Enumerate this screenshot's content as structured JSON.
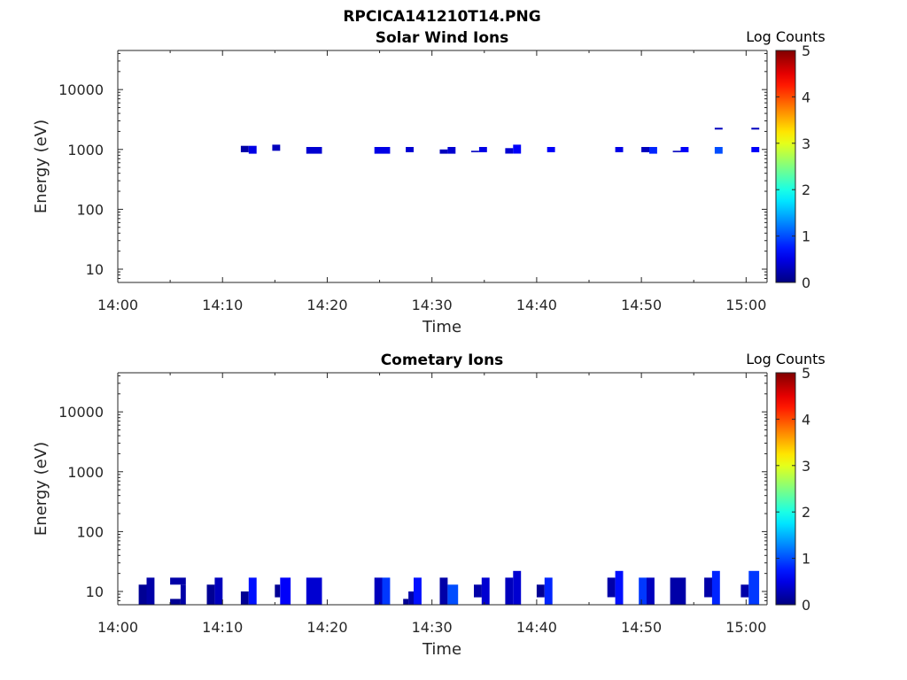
{
  "figure": {
    "title": "RPCICA141210T14.PNG"
  },
  "chart_data": [
    {
      "type": "heatmap",
      "title": "Solar Wind Ions",
      "xlabel": "Time",
      "ylabel": "Energy (eV)",
      "x_scale": "time",
      "y_scale": "log",
      "x_ticks": [
        "14:00",
        "14:10",
        "14:20",
        "14:30",
        "14:40",
        "14:50",
        "15:00"
      ],
      "y_ticks": [
        "10",
        "100",
        "1000",
        "10000"
      ],
      "xlim": [
        "14:00",
        "15:02"
      ],
      "ylim": [
        6,
        45000
      ],
      "colorbar": {
        "label": "Log Counts",
        "ticks": [
          "0",
          "1",
          "2",
          "3",
          "4",
          "5"
        ],
        "range": [
          0,
          5
        ],
        "colormap": "jet"
      },
      "cells": [
        {
          "t0": "14:11:45",
          "t1": "14:12:30",
          "e0": 900,
          "e1": 1150,
          "v": 0.2
        },
        {
          "t0": "14:12:30",
          "t1": "14:13:15",
          "e0": 850,
          "e1": 1150,
          "v": 0.5
        },
        {
          "t0": "14:14:45",
          "t1": "14:15:30",
          "e0": 950,
          "e1": 1200,
          "v": 0.3
        },
        {
          "t0": "14:18:00",
          "t1": "14:19:30",
          "e0": 850,
          "e1": 1100,
          "v": 0.4
        },
        {
          "t0": "14:24:30",
          "t1": "14:26:00",
          "e0": 850,
          "e1": 1100,
          "v": 0.5
        },
        {
          "t0": "14:27:30",
          "t1": "14:28:15",
          "e0": 900,
          "e1": 1100,
          "v": 0.4
        },
        {
          "t0": "14:30:45",
          "t1": "14:31:30",
          "e0": 850,
          "e1": 1000,
          "v": 0.3
        },
        {
          "t0": "14:31:30",
          "t1": "14:32:15",
          "e0": 850,
          "e1": 1100,
          "v": 0.4
        },
        {
          "t0": "14:33:45",
          "t1": "14:34:30",
          "e0": 900,
          "e1": 950,
          "v": 0.3
        },
        {
          "t0": "14:34:30",
          "t1": "14:35:15",
          "e0": 900,
          "e1": 1100,
          "v": 0.5
        },
        {
          "t0": "14:37:00",
          "t1": "14:37:45",
          "e0": 850,
          "e1": 1050,
          "v": 0.4
        },
        {
          "t0": "14:37:45",
          "t1": "14:38:30",
          "e0": 850,
          "e1": 1200,
          "v": 0.6
        },
        {
          "t0": "14:41:00",
          "t1": "14:41:45",
          "e0": 900,
          "e1": 1100,
          "v": 0.6
        },
        {
          "t0": "14:47:30",
          "t1": "14:48:15",
          "e0": 900,
          "e1": 1100,
          "v": 0.5
        },
        {
          "t0": "14:50:00",
          "t1": "14:50:45",
          "e0": 900,
          "e1": 1100,
          "v": 0.3
        },
        {
          "t0": "14:50:45",
          "t1": "14:51:30",
          "e0": 850,
          "e1": 1100,
          "v": 0.8
        },
        {
          "t0": "14:53:00",
          "t1": "14:53:45",
          "e0": 900,
          "e1": 950,
          "v": 0.3
        },
        {
          "t0": "14:53:45",
          "t1": "14:54:30",
          "e0": 900,
          "e1": 1100,
          "v": 0.6
        },
        {
          "t0": "14:57:00",
          "t1": "14:57:45",
          "e0": 2150,
          "e1": 2300,
          "v": 0.3
        },
        {
          "t0": "14:57:00",
          "t1": "14:57:45",
          "e0": 850,
          "e1": 1100,
          "v": 1.0
        },
        {
          "t0": "15:00:30",
          "t1": "15:01:15",
          "e0": 2150,
          "e1": 2300,
          "v": 0.3
        },
        {
          "t0": "15:00:30",
          "t1": "15:01:15",
          "e0": 900,
          "e1": 1100,
          "v": 0.6
        }
      ]
    },
    {
      "type": "heatmap",
      "title": "Cometary Ions",
      "xlabel": "Time",
      "ylabel": "Energy (eV)",
      "x_scale": "time",
      "y_scale": "log",
      "x_ticks": [
        "14:00",
        "14:10",
        "14:20",
        "14:30",
        "14:40",
        "14:50",
        "15:00"
      ],
      "y_ticks": [
        "10",
        "100",
        "1000",
        "10000"
      ],
      "xlim": [
        "14:00",
        "15:02"
      ],
      "ylim": [
        6,
        45000
      ],
      "colorbar": {
        "label": "Log Counts",
        "ticks": [
          "0",
          "1",
          "2",
          "3",
          "4",
          "5"
        ],
        "range": [
          0,
          5
        ],
        "colormap": "jet"
      },
      "cells": [
        {
          "t0": "14:02:00",
          "t1": "14:02:45",
          "e0": 6,
          "e1": 13,
          "v": 0.1
        },
        {
          "t0": "14:02:45",
          "t1": "14:03:30",
          "e0": 6,
          "e1": 17,
          "v": 0.2
        },
        {
          "t0": "14:05:00",
          "t1": "14:06:00",
          "e0": 6,
          "e1": 7.5,
          "v": 0.1
        },
        {
          "t0": "14:05:00",
          "t1": "14:06:30",
          "e0": 13,
          "e1": 17,
          "v": 0.2
        },
        {
          "t0": "14:06:00",
          "t1": "14:06:30",
          "e0": 6,
          "e1": 13,
          "v": 0.2
        },
        {
          "t0": "14:08:30",
          "t1": "14:09:15",
          "e0": 6,
          "e1": 13,
          "v": 0.1
        },
        {
          "t0": "14:09:15",
          "t1": "14:10:00",
          "e0": 6,
          "e1": 17,
          "v": 0.3
        },
        {
          "t0": "14:11:45",
          "t1": "14:12:30",
          "e0": 6,
          "e1": 10,
          "v": 0.1
        },
        {
          "t0": "14:12:30",
          "t1": "14:13:15",
          "e0": 6,
          "e1": 17,
          "v": 0.7
        },
        {
          "t0": "14:15:00",
          "t1": "14:15:30",
          "e0": 8,
          "e1": 13,
          "v": 0.1
        },
        {
          "t0": "14:15:30",
          "t1": "14:16:30",
          "e0": 6,
          "e1": 17,
          "v": 0.6
        },
        {
          "t0": "14:18:00",
          "t1": "14:19:30",
          "e0": 6,
          "e1": 17,
          "v": 0.4
        },
        {
          "t0": "14:24:30",
          "t1": "14:25:15",
          "e0": 6,
          "e1": 17,
          "v": 0.3
        },
        {
          "t0": "14:25:15",
          "t1": "14:26:00",
          "e0": 6,
          "e1": 17,
          "v": 0.9
        },
        {
          "t0": "14:27:15",
          "t1": "14:27:45",
          "e0": 6,
          "e1": 7.5,
          "v": 0.1
        },
        {
          "t0": "14:27:45",
          "t1": "14:28:15",
          "e0": 6,
          "e1": 10,
          "v": 0.2
        },
        {
          "t0": "14:28:15",
          "t1": "14:29:00",
          "e0": 6,
          "e1": 17,
          "v": 0.7
        },
        {
          "t0": "14:30:45",
          "t1": "14:31:30",
          "e0": 6,
          "e1": 17,
          "v": 0.2
        },
        {
          "t0": "14:31:30",
          "t1": "14:32:30",
          "e0": 6,
          "e1": 13,
          "v": 1.0
        },
        {
          "t0": "14:34:00",
          "t1": "14:34:45",
          "e0": 8,
          "e1": 13,
          "v": 0.2
        },
        {
          "t0": "14:34:45",
          "t1": "14:35:30",
          "e0": 6,
          "e1": 17,
          "v": 0.4
        },
        {
          "t0": "14:37:00",
          "t1": "14:37:45",
          "e0": 6,
          "e1": 17,
          "v": 0.3
        },
        {
          "t0": "14:37:45",
          "t1": "14:38:30",
          "e0": 6,
          "e1": 22,
          "v": 0.4
        },
        {
          "t0": "14:40:00",
          "t1": "14:40:45",
          "e0": 8,
          "e1": 13,
          "v": 0.1
        },
        {
          "t0": "14:40:45",
          "t1": "14:41:30",
          "e0": 6,
          "e1": 17,
          "v": 0.8
        },
        {
          "t0": "14:46:45",
          "t1": "14:47:30",
          "e0": 8,
          "e1": 17,
          "v": 0.2
        },
        {
          "t0": "14:47:30",
          "t1": "14:48:15",
          "e0": 6,
          "e1": 22,
          "v": 0.7
        },
        {
          "t0": "14:49:45",
          "t1": "14:50:30",
          "e0": 6,
          "e1": 17,
          "v": 0.9
        },
        {
          "t0": "14:50:30",
          "t1": "14:51:15",
          "e0": 6,
          "e1": 17,
          "v": 0.3
        },
        {
          "t0": "14:52:45",
          "t1": "14:54:15",
          "e0": 6,
          "e1": 17,
          "v": 0.2
        },
        {
          "t0": "14:56:00",
          "t1": "14:56:45",
          "e0": 8,
          "e1": 17,
          "v": 0.2
        },
        {
          "t0": "14:56:45",
          "t1": "14:57:30",
          "e0": 6,
          "e1": 22,
          "v": 0.8
        },
        {
          "t0": "14:59:30",
          "t1": "15:00:15",
          "e0": 8,
          "e1": 13,
          "v": 0.2
        },
        {
          "t0": "15:00:15",
          "t1": "15:01:15",
          "e0": 6,
          "e1": 22,
          "v": 0.9
        }
      ]
    }
  ]
}
